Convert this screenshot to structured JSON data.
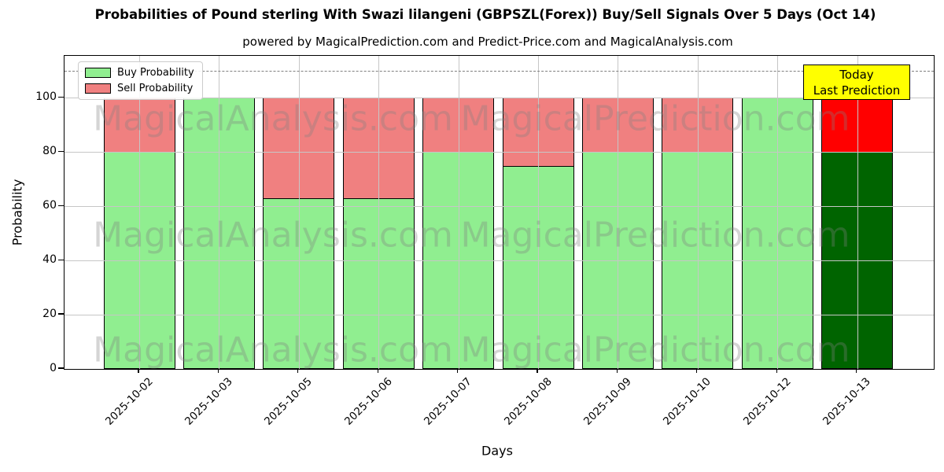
{
  "title": "Probabilities of Pound sterling With Swazi lilangeni (GBPSZL(Forex)) Buy/Sell Signals Over 5 Days (Oct 14)",
  "subtitle": "powered by MagicalPrediction.com and Predict-Price.com and MagicalAnalysis.com",
  "legend": {
    "buy_label": "Buy Probability",
    "sell_label": "Sell Probability"
  },
  "annotation": {
    "line1": "Today",
    "line2": "Last Prediction"
  },
  "watermarks": {
    "left_text": "MagicalAnalysis.com",
    "right_text": "MagicalPrediction.com"
  },
  "colors": {
    "buy": "#90EE90",
    "sell": "#F08080",
    "today_buy": "#006400",
    "today_sell": "#FF0000",
    "annotation_bg": "#FFFF00",
    "grid": "#c6c6c6",
    "dashed_line": "#7f7f7f"
  },
  "chart_data": {
    "type": "bar",
    "stacked": true,
    "title": "Probabilities of Pound sterling With Swazi lilangeni (GBPSZL(Forex)) Buy/Sell Signals Over 5 Days (Oct 14)",
    "xlabel": "Days",
    "ylabel": "Probability",
    "categories": [
      "2025-10-02",
      "2025-10-03",
      "2025-10-05",
      "2025-10-06",
      "2025-10-07",
      "2025-10-08",
      "2025-10-09",
      "2025-10-10",
      "2025-10-12",
      "2025-10-13"
    ],
    "series": [
      {
        "name": "Buy Probability",
        "color": "#90EE90",
        "values": [
          80,
          100,
          63,
          63,
          80,
          75,
          80,
          80,
          100,
          80
        ]
      },
      {
        "name": "Sell Probability",
        "color": "#F08080",
        "values": [
          20,
          0,
          37,
          37,
          20,
          25,
          20,
          20,
          0,
          20
        ]
      }
    ],
    "today_index": 9,
    "today_colors": {
      "buy": "#006400",
      "sell": "#FF0000"
    },
    "yticks": [
      0,
      20,
      40,
      60,
      80,
      100
    ],
    "ylim": [
      0,
      115.5
    ],
    "dashed_line_y": 110,
    "grid": true,
    "legend_position": "upper left"
  }
}
